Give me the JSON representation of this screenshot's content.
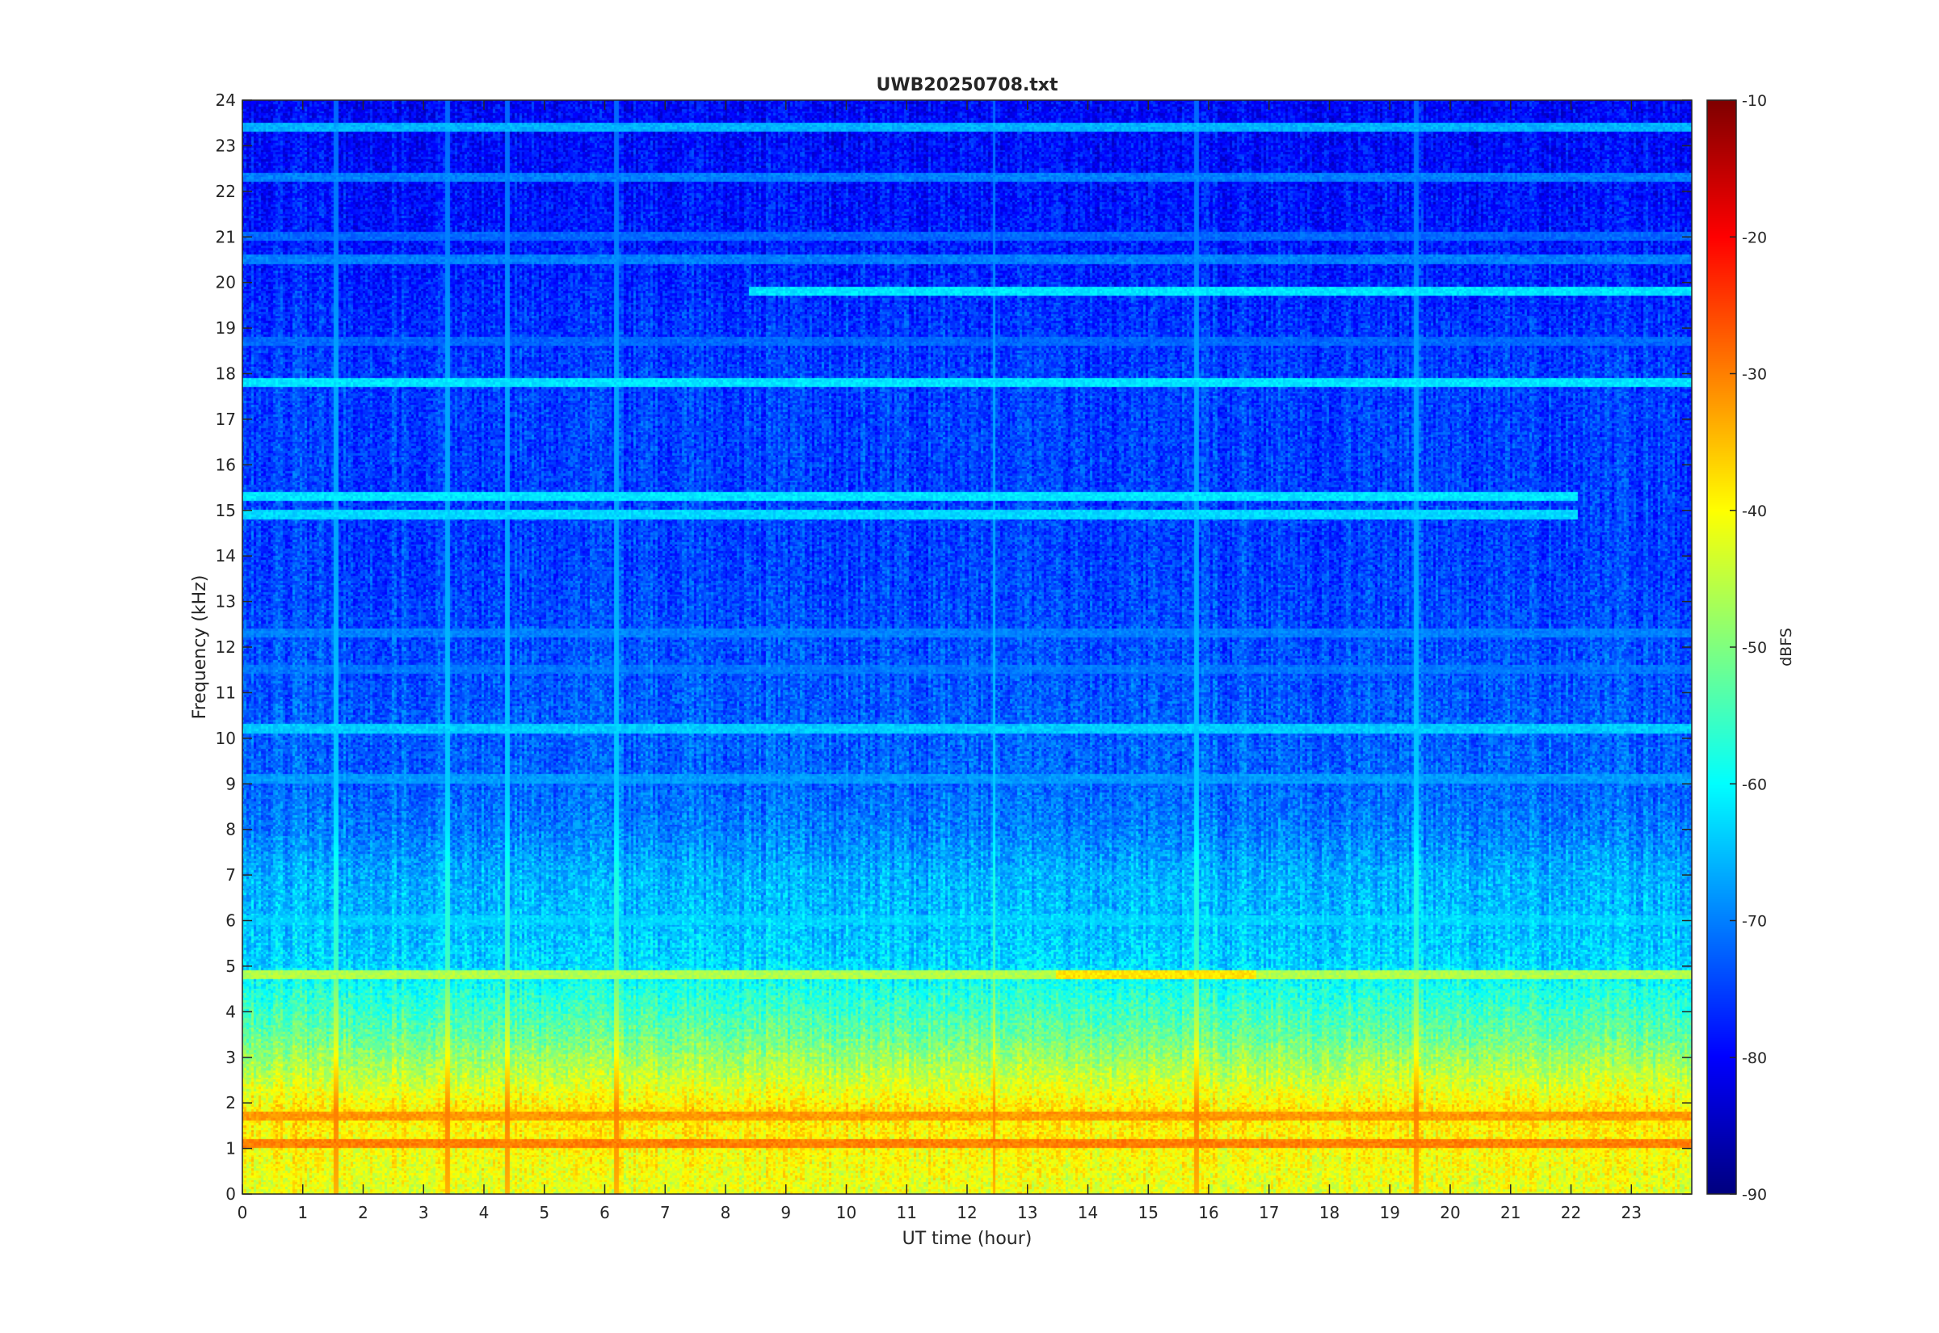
{
  "chart_data": {
    "type": "heatmap",
    "title": "UWB20250708.txt",
    "xlabel": "UT time (hour)",
    "ylabel": "Frequency (kHz)",
    "xlim": [
      0,
      24
    ],
    "ylim": [
      0,
      24
    ],
    "x_ticks": [
      "0",
      "1",
      "2",
      "3",
      "4",
      "5",
      "6",
      "7",
      "8",
      "9",
      "10",
      "11",
      "12",
      "13",
      "14",
      "15",
      "16",
      "17",
      "18",
      "19",
      "20",
      "21",
      "22",
      "23"
    ],
    "y_ticks": [
      "0",
      "1",
      "2",
      "3",
      "4",
      "5",
      "6",
      "7",
      "8",
      "9",
      "10",
      "11",
      "12",
      "13",
      "14",
      "15",
      "16",
      "17",
      "18",
      "19",
      "20",
      "21",
      "22",
      "23",
      "24"
    ],
    "colorbar": {
      "label": "dBFS",
      "range": [
        -90,
        -10
      ],
      "ticks": [
        "-10",
        "-20",
        "-30",
        "-40",
        "-50",
        "-60",
        "-70",
        "-80",
        "-90"
      ],
      "colormap": "jet"
    },
    "background_profile_dbfs": [
      {
        "freq_khz": 0.0,
        "level": -42
      },
      {
        "freq_khz": 1.0,
        "level": -40
      },
      {
        "freq_khz": 1.8,
        "level": -38
      },
      {
        "freq_khz": 2.5,
        "level": -44
      },
      {
        "freq_khz": 3.5,
        "level": -52
      },
      {
        "freq_khz": 4.5,
        "level": -58
      },
      {
        "freq_khz": 5.0,
        "level": -63
      },
      {
        "freq_khz": 6.0,
        "level": -65
      },
      {
        "freq_khz": 7.0,
        "level": -66
      },
      {
        "freq_khz": 8.0,
        "level": -70
      },
      {
        "freq_khz": 9.0,
        "level": -72
      },
      {
        "freq_khz": 11.0,
        "level": -73
      },
      {
        "freq_khz": 14.0,
        "level": -75
      },
      {
        "freq_khz": 18.0,
        "level": -75
      },
      {
        "freq_khz": 21.0,
        "level": -78
      },
      {
        "freq_khz": 24.0,
        "level": -80
      }
    ],
    "tonal_lines": [
      {
        "freq_khz": 19.8,
        "t_start": 8.4,
        "t_end": 24.0,
        "level": -62
      },
      {
        "freq_khz": 17.8,
        "t_start": 0.0,
        "t_end": 24.0,
        "level": -62
      },
      {
        "freq_khz": 15.3,
        "t_start": 0.0,
        "t_end": 22.1,
        "level": -62
      },
      {
        "freq_khz": 14.9,
        "t_start": 0.0,
        "t_end": 22.1,
        "level": -63
      },
      {
        "freq_khz": 10.2,
        "t_start": 0.0,
        "t_end": 24.0,
        "level": -64
      },
      {
        "freq_khz": 6.0,
        "t_start": 0.0,
        "t_end": 24.0,
        "level": -64
      },
      {
        "freq_khz": 4.8,
        "t_start": 0.0,
        "t_end": 24.0,
        "level": -46
      },
      {
        "freq_khz": 4.8,
        "t_start": 13.5,
        "t_end": 16.8,
        "level": -38
      },
      {
        "freq_khz": 23.4,
        "t_start": 0.0,
        "t_end": 24.0,
        "level": -66
      },
      {
        "freq_khz": 22.3,
        "t_start": 0.0,
        "t_end": 24.0,
        "level": -70
      },
      {
        "freq_khz": 21.0,
        "t_start": 0.0,
        "t_end": 24.0,
        "level": -72
      },
      {
        "freq_khz": 20.5,
        "t_start": 0.0,
        "t_end": 24.0,
        "level": -70
      },
      {
        "freq_khz": 18.7,
        "t_start": 0.0,
        "t_end": 24.0,
        "level": -72
      },
      {
        "freq_khz": 12.3,
        "t_start": 0.0,
        "t_end": 24.0,
        "level": -70
      },
      {
        "freq_khz": 11.5,
        "t_start": 0.0,
        "t_end": 24.0,
        "level": -71
      },
      {
        "freq_khz": 9.1,
        "t_start": 0.0,
        "t_end": 24.0,
        "level": -68
      },
      {
        "freq_khz": 1.1,
        "t_start": 0.0,
        "t_end": 24.0,
        "level": -30
      },
      {
        "freq_khz": 1.7,
        "t_start": 0.0,
        "t_end": 24.0,
        "level": -32
      }
    ],
    "impulsive_events_hours": [
      1.55,
      3.4,
      4.4,
      6.2,
      12.45,
      15.8,
      19.45
    ]
  }
}
